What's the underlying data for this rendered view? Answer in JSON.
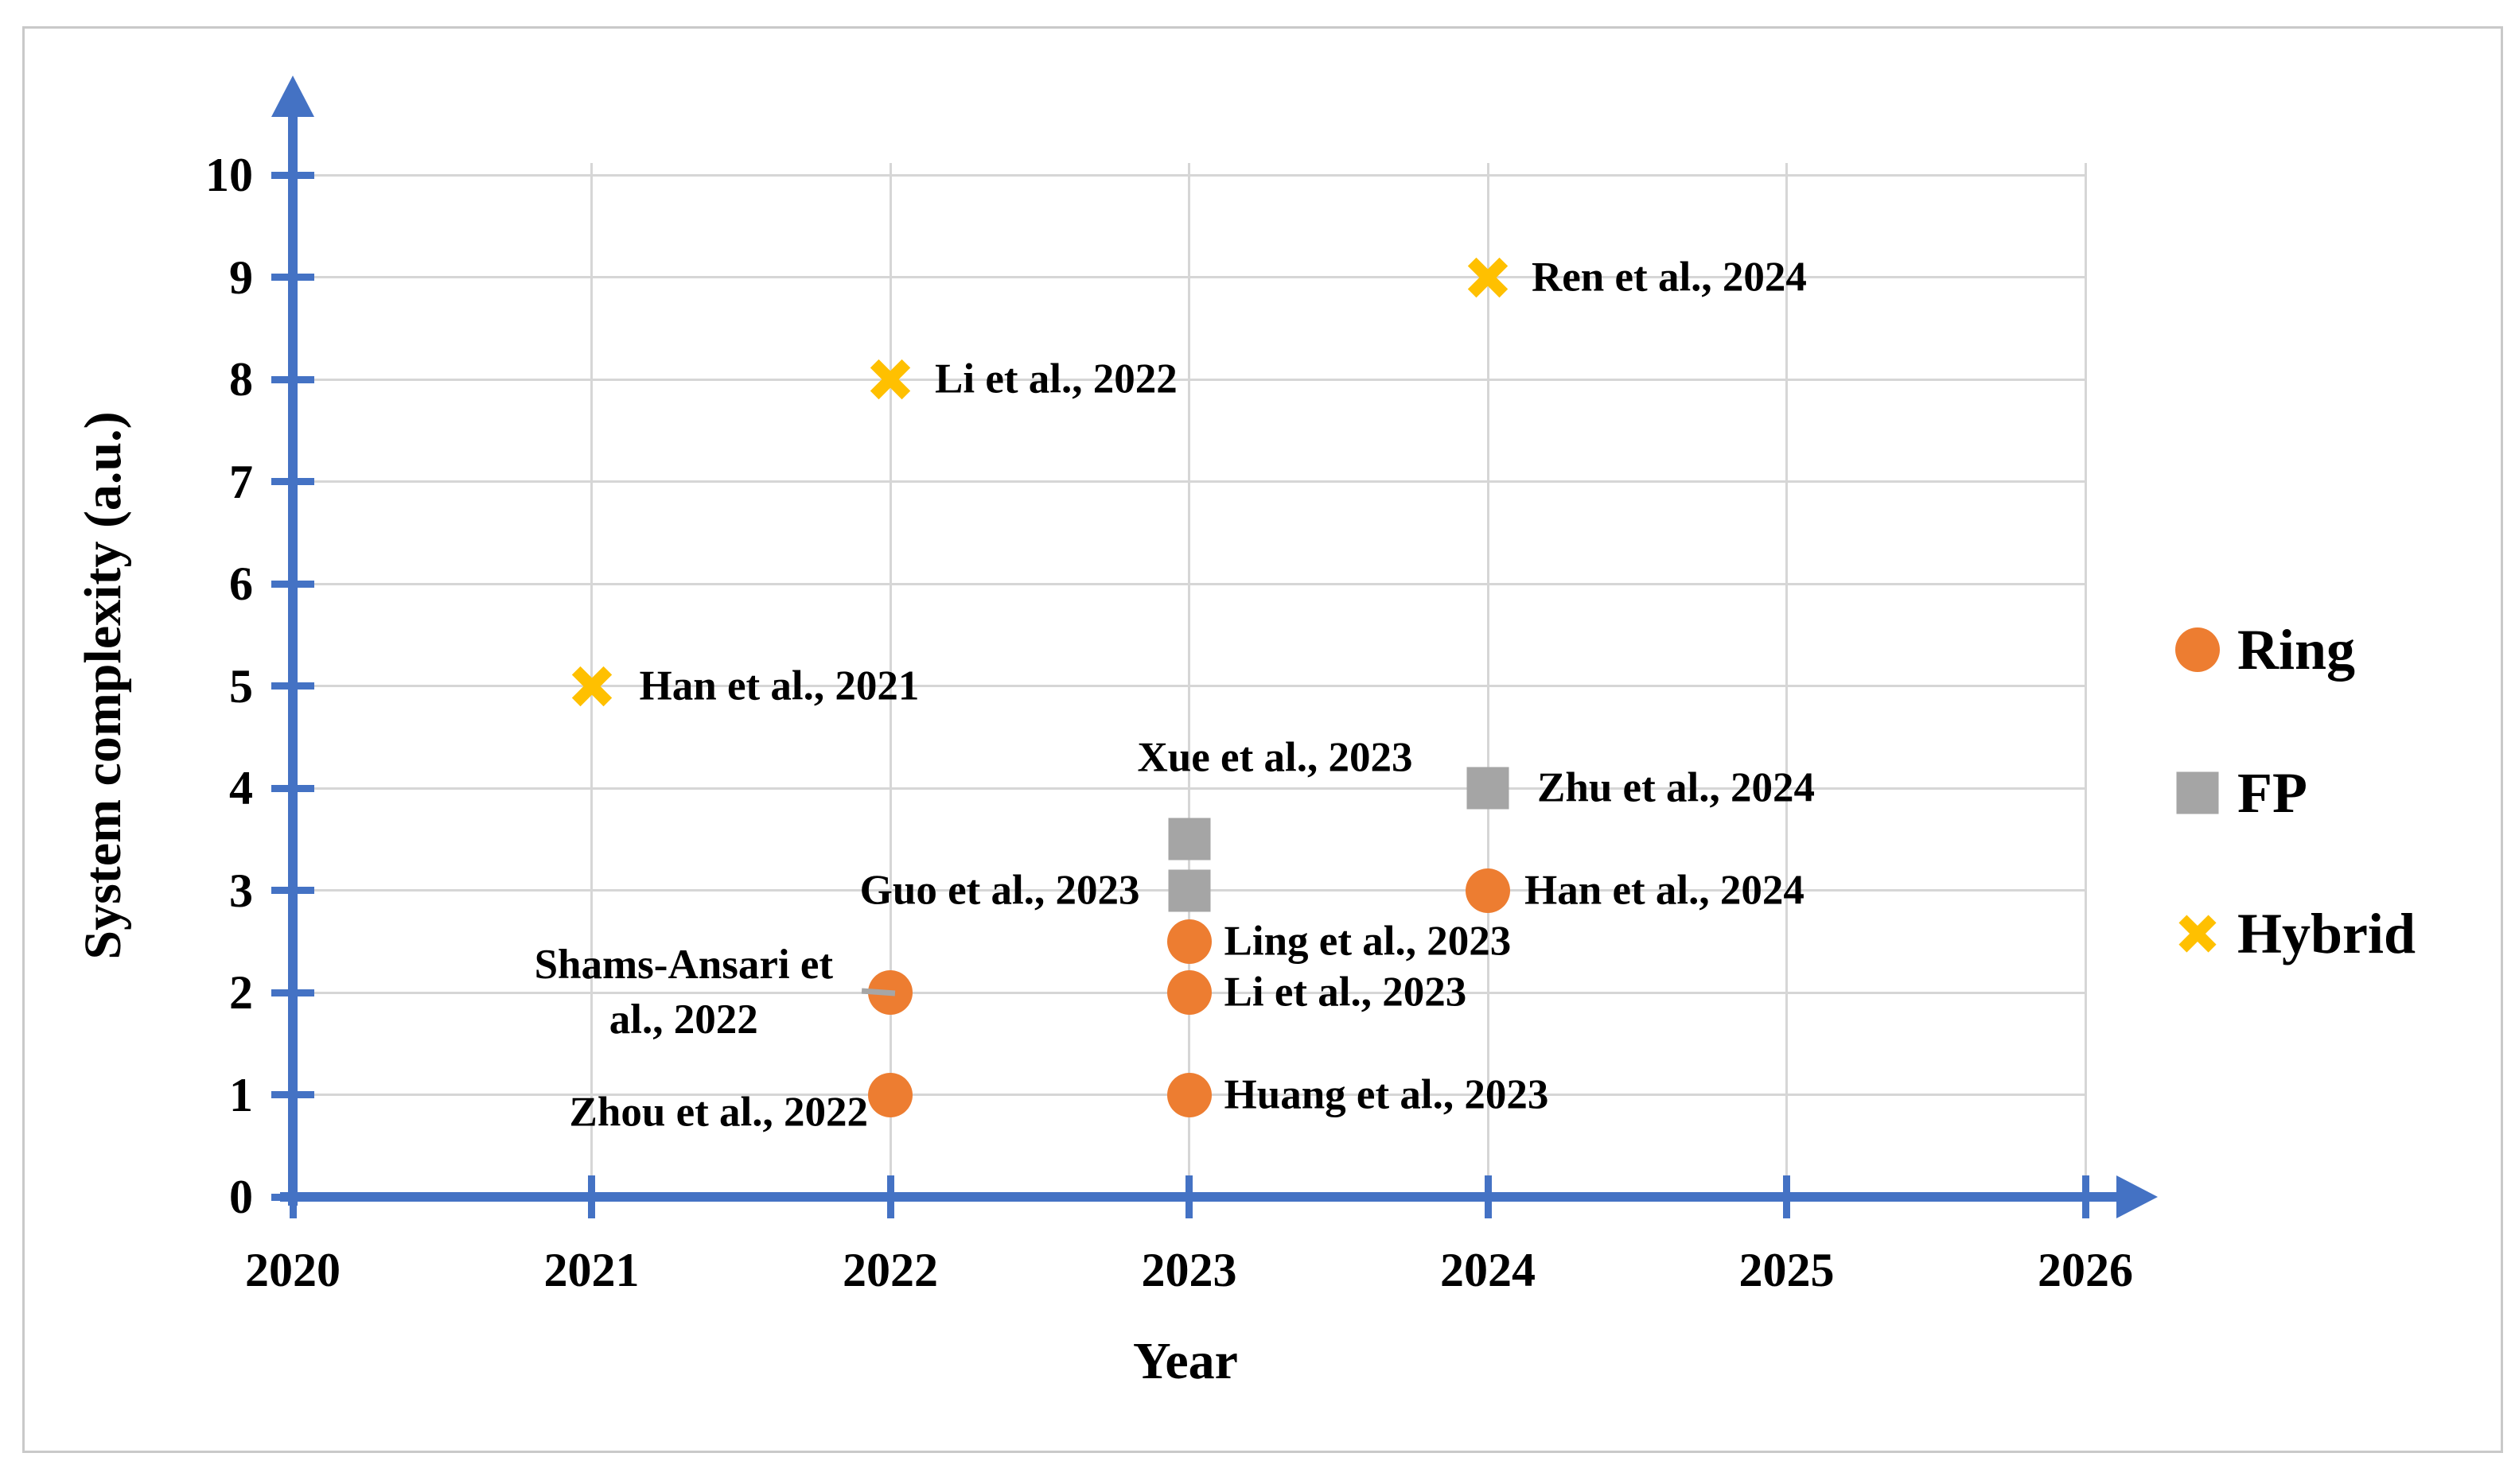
{
  "chart_data": {
    "type": "scatter",
    "title": "",
    "xlabel": "Year",
    "ylabel": "System complexity (a.u.)",
    "xlim": [
      2020,
      2026
    ],
    "ylim": [
      0,
      10
    ],
    "x_ticks": [
      2020,
      2021,
      2022,
      2023,
      2024,
      2025,
      2026
    ],
    "y_ticks": [
      0,
      1,
      2,
      3,
      4,
      5,
      6,
      7,
      8,
      9,
      10
    ],
    "grid": true,
    "legend_position": "right",
    "axis_style": "blue arrows on both axes",
    "series": [
      {
        "name": "FP",
        "marker": "square",
        "color": "#A5A5A5",
        "points": [
          {
            "x": 2023,
            "y": 3.5,
            "label": "Xue et al., 2023",
            "label_anchor": "above",
            "label_dx": 108,
            "label_dy": -102
          },
          {
            "x": 2023,
            "y": 3,
            "label": "Guo et al., 2023",
            "label_anchor": "left",
            "label_dx": -62,
            "label_dy": 0
          },
          {
            "x": 2024,
            "y": 4,
            "label": "Zhu et al., 2024",
            "label_anchor": "right",
            "label_dx": 62,
            "label_dy": 0
          }
        ]
      },
      {
        "name": "Hybrid",
        "marker": "x",
        "color": "#FFC000",
        "points": [
          {
            "x": 2021,
            "y": 5,
            "label": "Han et al., 2021",
            "label_anchor": "right",
            "label_dx": 60,
            "label_dy": 0
          },
          {
            "x": 2022,
            "y": 8,
            "label": "Li et al., 2022",
            "label_anchor": "right",
            "label_dx": 56,
            "label_dy": 0
          },
          {
            "x": 2024,
            "y": 9,
            "label": "Ren et al., 2024",
            "label_anchor": "right",
            "label_dx": 55,
            "label_dy": 0
          }
        ]
      },
      {
        "name": "Ring",
        "marker": "circle",
        "color": "#ED7D31",
        "points": [
          {
            "x": 2022,
            "y": 2,
            "label": "Shams-Ansari et al., 2022",
            "label_lines": [
              "Shams-Ansari et",
              "al., 2022"
            ],
            "label_anchor": "left",
            "label_dx": -72,
            "label_dy": 0,
            "leader_line": true
          },
          {
            "x": 2022,
            "y": 1,
            "label": "Zhou et al., 2022",
            "label_anchor": "left",
            "label_dx": -28,
            "label_dy": 22
          },
          {
            "x": 2023,
            "y": 2.5,
            "label": "Ling et al., 2023",
            "label_anchor": "right",
            "label_dx": 44,
            "label_dy": 0
          },
          {
            "x": 2023,
            "y": 2,
            "label": "Li et al., 2023",
            "label_anchor": "right",
            "label_dx": 44,
            "label_dy": 0
          },
          {
            "x": 2023,
            "y": 1,
            "label": "Huang et al., 2023",
            "label_anchor": "right",
            "label_dx": 44,
            "label_dy": 0
          },
          {
            "x": 2024,
            "y": 3,
            "label": "Han et al., 2024",
            "label_anchor": "right",
            "label_dx": 46,
            "label_dy": 0
          }
        ]
      }
    ],
    "legend": [
      {
        "label": "Ring",
        "marker": "circle",
        "color": "#ED7D31"
      },
      {
        "label": "FP",
        "marker": "square",
        "color": "#A5A5A5"
      },
      {
        "label": "Hybrid",
        "marker": "x",
        "color": "#FFC000"
      }
    ]
  },
  "colors": {
    "axis": "#4472C4",
    "gridline": "#D6D6D6",
    "frame": "#C9C9C9",
    "leader_line": "#A6A6A6",
    "text": "#000000",
    "background": "#FFFFFF",
    "series_ring": "#ED7D31",
    "series_fp": "#A5A5A5",
    "series_hybrid": "#FFC000"
  }
}
